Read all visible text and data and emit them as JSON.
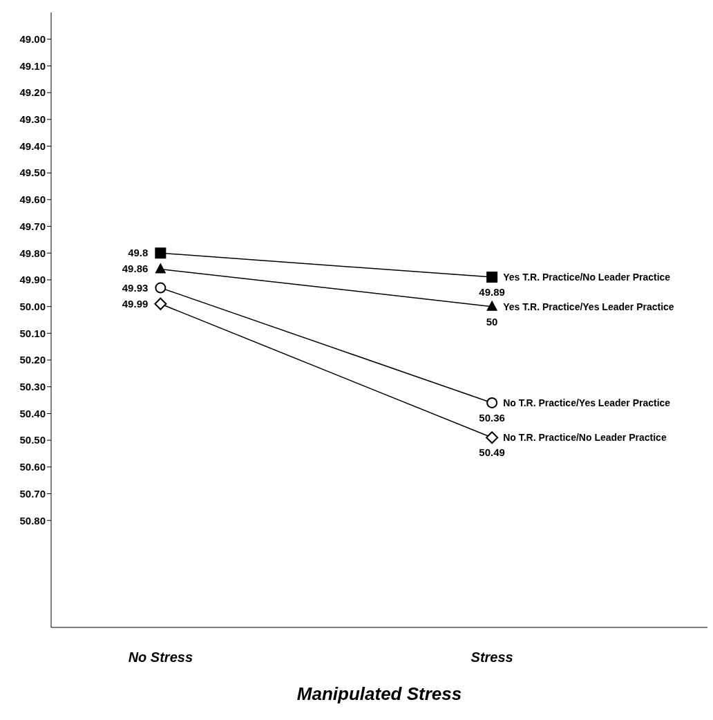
{
  "chart_data": {
    "type": "line",
    "xlabel": "Manipulated Stress",
    "categories": [
      "No Stress",
      "Stress"
    ],
    "series": [
      {
        "name": "Yes T.R. Practice/No Leader Practice",
        "color": "#000000",
        "marker": "square",
        "values": [
          49.8,
          49.89
        ]
      },
      {
        "name": "Yes T.R. Practice/Yes Leader Practice",
        "color": "#000000",
        "marker": "triangle",
        "values": [
          49.86,
          50
        ]
      },
      {
        "name": "No T.R. Practice/Yes Leader Practice",
        "color": "#000000",
        "marker": "circle",
        "values": [
          49.93,
          50.36
        ]
      },
      {
        "name": "No T.R. Practice/No Leader Practice",
        "color": "#000000",
        "marker": "diamond",
        "values": [
          49.99,
          50.49
        ]
      }
    ],
    "ylim": [
      51.2,
      48.9
    ],
    "yticks": [
      {
        "value": 49,
        "label": "49.00"
      },
      {
        "value": 49.1,
        "label": "49.10"
      },
      {
        "value": 49.2,
        "label": "49.20"
      },
      {
        "value": 49.3,
        "label": "49.30"
      },
      {
        "value": 49.4,
        "label": "49.40"
      },
      {
        "value": 49.5,
        "label": "49.50"
      },
      {
        "value": 49.6,
        "label": "49.60"
      },
      {
        "value": 49.7,
        "label": "49.70"
      },
      {
        "value": 49.8,
        "label": "49.80"
      },
      {
        "value": 49.9,
        "label": "49.90"
      },
      {
        "value": 50,
        "label": "50.00"
      },
      {
        "value": 50.1,
        "label": "50.10"
      },
      {
        "value": 50.2,
        "label": "50.20"
      },
      {
        "value": 50.3,
        "label": "50.30"
      },
      {
        "value": 50.4,
        "label": "50.40"
      },
      {
        "value": 50.5,
        "label": "50.50"
      },
      {
        "value": 50.6,
        "label": "50.60"
      },
      {
        "value": 50.7,
        "label": "50.70"
      },
      {
        "value": 50.8,
        "label": "50.80"
      }
    ],
    "data_labels": true,
    "grid": false,
    "legend": false,
    "line_style": "solid"
  }
}
